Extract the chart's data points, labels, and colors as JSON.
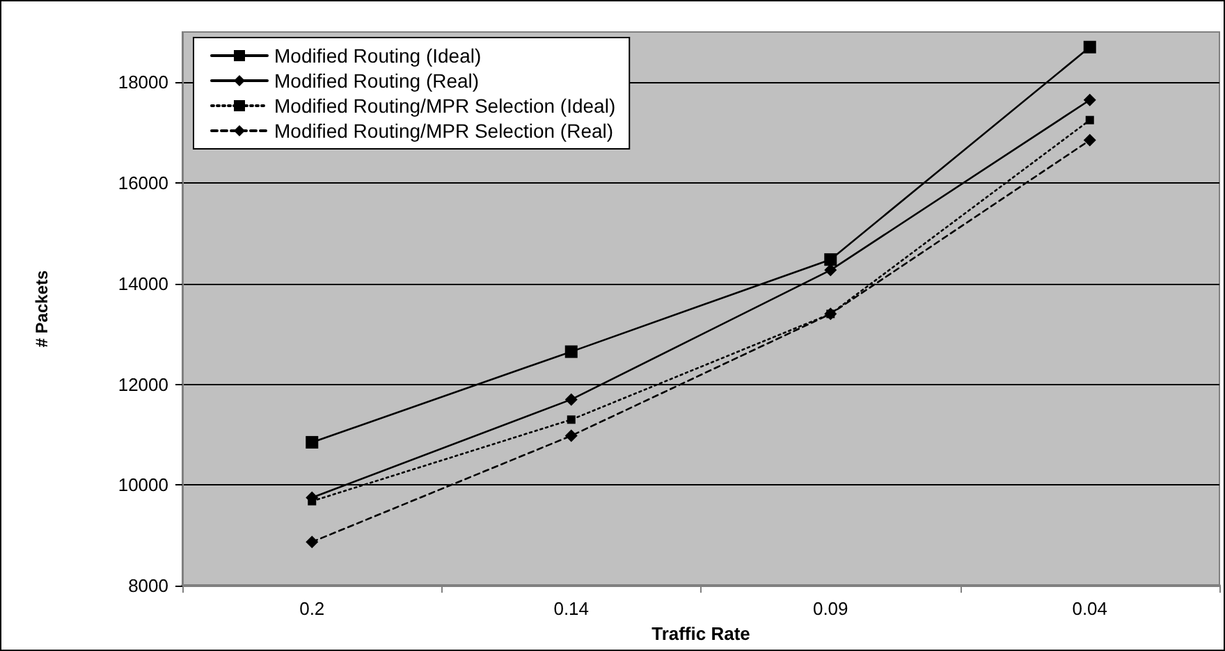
{
  "chart_data": {
    "type": "line",
    "xlabel": "Traffic Rate",
    "ylabel": "# Packets",
    "categories": [
      "0.2",
      "0.14",
      "0.09",
      "0.04"
    ],
    "series": [
      {
        "name": "Modified Routing (Ideal)",
        "color": "#000000",
        "marker": "square",
        "line_style": "solid",
        "values": [
          10850,
          12650,
          14480,
          18700
        ]
      },
      {
        "name": "Modified Routing (Real)",
        "color": "#000000",
        "marker": "diamond",
        "line_style": "solid",
        "values": [
          9750,
          11700,
          14270,
          17650
        ]
      },
      {
        "name": "Modified Routing/MPR Selection (Ideal)",
        "color": "#000000",
        "marker": "square",
        "line_style": "dotted",
        "values": [
          9680,
          11300,
          13400,
          17250
        ]
      },
      {
        "name": "Modified Routing/MPR Selection (Real)",
        "color": "#000000",
        "marker": "diamond",
        "line_style": "dashed",
        "values": [
          8870,
          10980,
          13400,
          16850
        ]
      }
    ],
    "ylim": [
      8000,
      19000
    ],
    "yticks": [
      8000,
      10000,
      12000,
      14000,
      16000,
      18000
    ],
    "grid": "y",
    "legend": "top left"
  }
}
